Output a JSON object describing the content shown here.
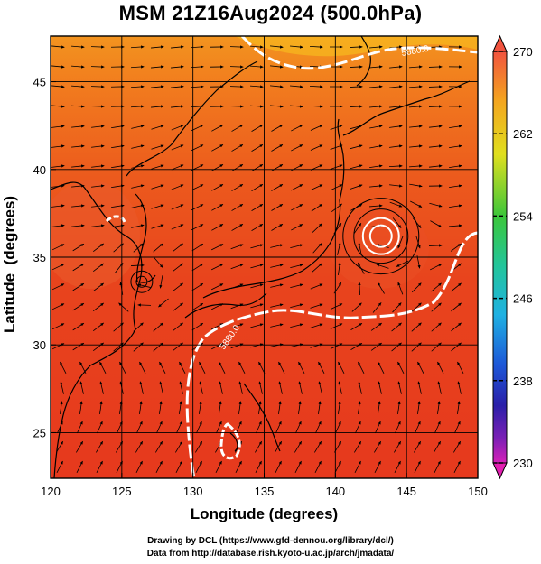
{
  "title": "MSM 21Z16Aug2024 (500.0hPa)",
  "axes": {
    "xlabel": "Longitude (degrees)",
    "ylabel": "Latitude  (degrees)",
    "x_ticks": [
      "120",
      "125",
      "130",
      "135",
      "140",
      "145",
      "150"
    ],
    "y_ticks": [
      "25",
      "30",
      "35",
      "40",
      "45"
    ],
    "xlim": [
      120,
      150
    ],
    "ylim": [
      22.4,
      47.6
    ]
  },
  "colorbar": {
    "ticks": [
      "270",
      "262",
      "254",
      "246",
      "238",
      "230"
    ],
    "range": [
      230,
      270
    ]
  },
  "contour_labels": [
    "5880.0",
    "5880.0"
  ],
  "credits": {
    "line1": "Drawing by DCL (https://www.gfd-dennou.org/library/dcl/)",
    "line2": "Data from http://database.rish.kyoto-u.ac.jp/arch/jmadata/"
  },
  "colors": {
    "field_dominant": "#e8401c",
    "field_warm": "#f26a1d",
    "field_north": "#f5a21e",
    "coast": "#000000",
    "contour": "#ffffff"
  },
  "chart_data": {
    "type": "heatmap",
    "title": "MSM 21Z16Aug2024 (500.0hPa)",
    "xlabel": "Longitude (degrees)",
    "ylabel": "Latitude  (degrees)",
    "xlim": [
      120,
      150
    ],
    "ylim": [
      22.4,
      47.6
    ],
    "x_ticks": [
      120,
      125,
      130,
      135,
      140,
      145,
      150
    ],
    "y_ticks": [
      25,
      30,
      35,
      40,
      45
    ],
    "colorbar_range": [
      230,
      270
    ],
    "colorbar_ticks": [
      230,
      238,
      246,
      254,
      262,
      270
    ],
    "grid": true,
    "overlays": [
      "temperature shading",
      "wind streamlines",
      "5880 m geopotential height contour"
    ],
    "contour_value": 5880.0,
    "vortex_centers": [
      {
        "lon": 143.2,
        "lat": 36.2
      },
      {
        "lon": 126.4,
        "lat": 33.6
      }
    ]
  }
}
